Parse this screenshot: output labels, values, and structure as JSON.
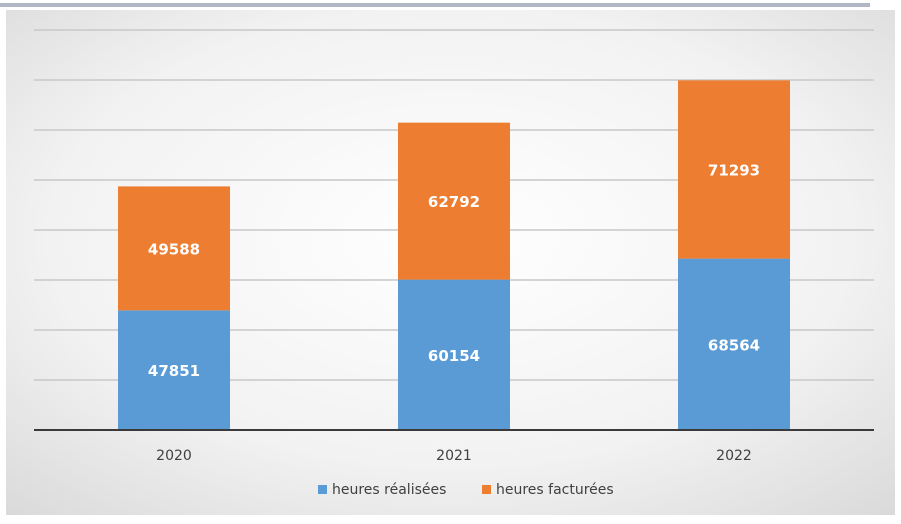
{
  "chart_data": {
    "type": "bar",
    "stacked": true,
    "categories": [
      "2020",
      "2021",
      "2022"
    ],
    "series": [
      {
        "name": "heures réalisées",
        "color": "#5b9bd5",
        "values": [
          47851,
          60154,
          68564
        ]
      },
      {
        "name": "heures facturées",
        "color": "#ed7d31",
        "values": [
          49588,
          62792,
          71293
        ]
      }
    ],
    "title": "",
    "xlabel": "",
    "ylabel": "",
    "ylim": [
      0,
      160000
    ],
    "grid_step": 20000,
    "grid": true,
    "legend_position": "bottom",
    "data_labels": true
  }
}
